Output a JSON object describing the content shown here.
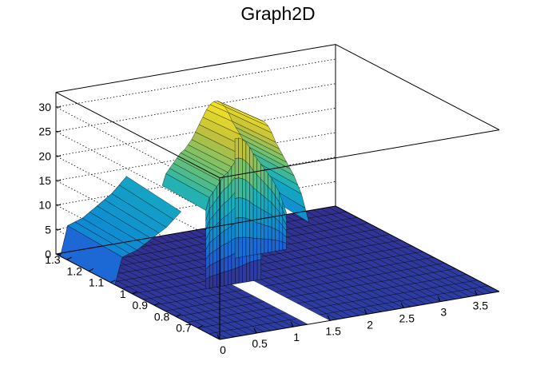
{
  "chart_data": {
    "type": "surface",
    "title": "Graph2D",
    "xlabel": "",
    "ylabel": "",
    "zlabel": "",
    "xlim": [
      0,
      3.8
    ],
    "ylim": [
      0.6,
      1.35
    ],
    "zlim": [
      0,
      33
    ],
    "x_ticks": [
      "0",
      "0.5",
      "1",
      "1.5",
      "2",
      "2.5",
      "3",
      "3.5"
    ],
    "x_tick_values": [
      0,
      0.5,
      1,
      1.5,
      2,
      2.5,
      3,
      3.5
    ],
    "y_ticks": [
      "0.7",
      "0.8",
      "0.9",
      "1",
      "1.1",
      "1.2",
      "1.3"
    ],
    "y_tick_values": [
      0.7,
      0.8,
      0.9,
      1.0,
      1.1,
      1.2,
      1.3
    ],
    "z_ticks": [
      "0",
      "5",
      "10",
      "15",
      "20",
      "25",
      "30"
    ],
    "z_tick_values": [
      0,
      5,
      10,
      15,
      20,
      25,
      30
    ],
    "grid": true,
    "colormap": [
      "#352a87",
      "#1f5fd6",
      "#0e8fd1",
      "#18b0bb",
      "#6cc173",
      "#c3c03a",
      "#f9e821"
    ],
    "x_columns": [
      1.0,
      1.05,
      1.1,
      1.15,
      1.2,
      1.25,
      1.3,
      1.35,
      1.4,
      1.45,
      1.5,
      1.55,
      1.6,
      1.65,
      1.7,
      1.75,
      1.8,
      1.85,
      1.9,
      1.95,
      2.0,
      2.05,
      2.1,
      2.15,
      2.2,
      2.25,
      2.3,
      2.35,
      2.4
    ],
    "column_peak_height": [
      16,
      18.5,
      19.5,
      20.5,
      21.5,
      22.5,
      23,
      24,
      25,
      26.5,
      28,
      29.5,
      31,
      32,
      32.5,
      32.5,
      32,
      31,
      29.5,
      27.5,
      26,
      24.5,
      23,
      21.5,
      20,
      18,
      16,
      13,
      10
    ],
    "x_range_note_high_y": [
      1.0,
      1.3
    ],
    "plateau_height": [
      0,
      6,
      6.5,
      7,
      8,
      9,
      10,
      11,
      12.5,
      14
    ],
    "plateau_x": [
      0.0,
      0.1,
      0.2,
      0.3,
      0.4,
      0.5,
      0.6,
      0.7,
      0.8,
      0.9
    ],
    "plateau_y": 1.33,
    "zero_region": "x from 0 to 3.8, y from 0.6 to 1.35 at z = 0 outside the wall",
    "hole_x": [
      1.1,
      1.55
    ],
    "hole_y": [
      0.6,
      0.97
    ]
  }
}
